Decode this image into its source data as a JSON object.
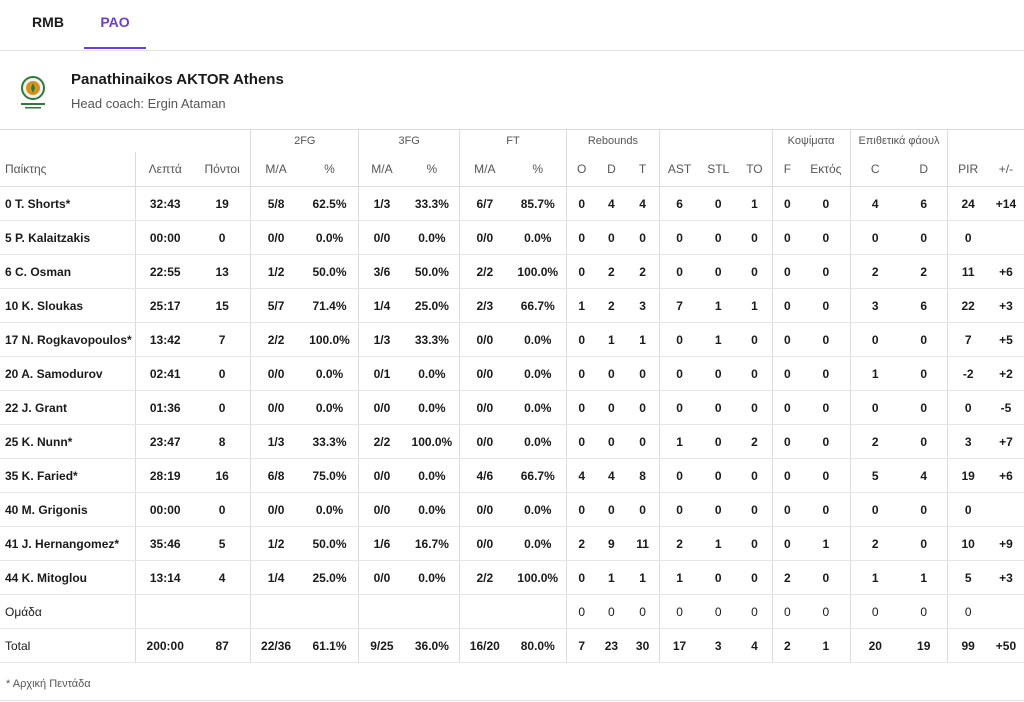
{
  "tabs": [
    {
      "label": "RMB"
    },
    {
      "label": "PAO"
    }
  ],
  "team": {
    "name": "Panathinaikos AKTOR Athens",
    "coach": "Head coach: Ergin Ataman"
  },
  "groups": {
    "fg2": "2FG",
    "fg3": "3FG",
    "ft": "FT",
    "reb": "Rebounds",
    "blk": "Κοψίματα",
    "fouls": "Επιθετικά φάουλ"
  },
  "headers": {
    "player": "Παίκτης",
    "min": "Λεπτά",
    "pts": "Πόντοι",
    "fg2_ma": "M/A",
    "fg2_pct": "%",
    "fg3_ma": "M/A",
    "fg3_pct": "%",
    "ft_ma": "M/A",
    "ft_pct": "%",
    "o": "O",
    "d": "D",
    "t": "T",
    "ast": "AST",
    "stl": "STL",
    "to": "TO",
    "blk_f": "F",
    "blk_e": "Εκτός",
    "fl_c": "C",
    "fl_d": "D",
    "pir": "PIR",
    "pm": "+/-"
  },
  "rows": [
    [
      "0 T. Shorts*",
      "32:43",
      "19",
      "5/8",
      "62.5%",
      "1/3",
      "33.3%",
      "6/7",
      "85.7%",
      "0",
      "4",
      "4",
      "6",
      "0",
      "1",
      "0",
      "0",
      "4",
      "6",
      "24",
      "+14"
    ],
    [
      "5 P. Kalaitzakis",
      "00:00",
      "0",
      "0/0",
      "0.0%",
      "0/0",
      "0.0%",
      "0/0",
      "0.0%",
      "0",
      "0",
      "0",
      "0",
      "0",
      "0",
      "0",
      "0",
      "0",
      "0",
      "0",
      ""
    ],
    [
      "6 C. Osman",
      "22:55",
      "13",
      "1/2",
      "50.0%",
      "3/6",
      "50.0%",
      "2/2",
      "100.0%",
      "0",
      "2",
      "2",
      "0",
      "0",
      "0",
      "0",
      "0",
      "2",
      "2",
      "11",
      "+6"
    ],
    [
      "10 K. Sloukas",
      "25:17",
      "15",
      "5/7",
      "71.4%",
      "1/4",
      "25.0%",
      "2/3",
      "66.7%",
      "1",
      "2",
      "3",
      "7",
      "1",
      "1",
      "0",
      "0",
      "3",
      "6",
      "22",
      "+3"
    ],
    [
      "17 N. Rogkavopoulos*",
      "13:42",
      "7",
      "2/2",
      "100.0%",
      "1/3",
      "33.3%",
      "0/0",
      "0.0%",
      "0",
      "1",
      "1",
      "0",
      "1",
      "0",
      "0",
      "0",
      "0",
      "0",
      "7",
      "+5"
    ],
    [
      "20 A. Samodurov",
      "02:41",
      "0",
      "0/0",
      "0.0%",
      "0/1",
      "0.0%",
      "0/0",
      "0.0%",
      "0",
      "0",
      "0",
      "0",
      "0",
      "0",
      "0",
      "0",
      "1",
      "0",
      "-2",
      "+2"
    ],
    [
      "22 J. Grant",
      "01:36",
      "0",
      "0/0",
      "0.0%",
      "0/0",
      "0.0%",
      "0/0",
      "0.0%",
      "0",
      "0",
      "0",
      "0",
      "0",
      "0",
      "0",
      "0",
      "0",
      "0",
      "0",
      "-5"
    ],
    [
      "25 K. Nunn*",
      "23:47",
      "8",
      "1/3",
      "33.3%",
      "2/2",
      "100.0%",
      "0/0",
      "0.0%",
      "0",
      "0",
      "0",
      "1",
      "0",
      "2",
      "0",
      "0",
      "2",
      "0",
      "3",
      "+7"
    ],
    [
      "35 K. Faried*",
      "28:19",
      "16",
      "6/8",
      "75.0%",
      "0/0",
      "0.0%",
      "4/6",
      "66.7%",
      "4",
      "4",
      "8",
      "0",
      "0",
      "0",
      "0",
      "0",
      "5",
      "4",
      "19",
      "+6"
    ],
    [
      "40 M. Grigonis",
      "00:00",
      "0",
      "0/0",
      "0.0%",
      "0/0",
      "0.0%",
      "0/0",
      "0.0%",
      "0",
      "0",
      "0",
      "0",
      "0",
      "0",
      "0",
      "0",
      "0",
      "0",
      "0",
      ""
    ],
    [
      "41 J. Hernangomez*",
      "35:46",
      "5",
      "1/2",
      "50.0%",
      "1/6",
      "16.7%",
      "0/0",
      "0.0%",
      "2",
      "9",
      "11",
      "2",
      "1",
      "0",
      "0",
      "1",
      "2",
      "0",
      "10",
      "+9"
    ],
    [
      "44 K. Mitoglou",
      "13:14",
      "4",
      "1/4",
      "25.0%",
      "0/0",
      "0.0%",
      "2/2",
      "100.0%",
      "0",
      "1",
      "1",
      "1",
      "0",
      "0",
      "2",
      "0",
      "1",
      "1",
      "5",
      "+3"
    ]
  ],
  "team_row": [
    "Ομάδα",
    "",
    "",
    "",
    "",
    "",
    "",
    "",
    "",
    "0",
    "0",
    "0",
    "0",
    "0",
    "0",
    "0",
    "0",
    "0",
    "0",
    "0",
    ""
  ],
  "total_row": [
    "Total",
    "200:00",
    "87",
    "22/36",
    "61.1%",
    "9/25",
    "36.0%",
    "16/20",
    "80.0%",
    "7",
    "23",
    "30",
    "17",
    "3",
    "4",
    "2",
    "1",
    "20",
    "19",
    "99",
    "+50"
  ],
  "footnote": "* Αρχική Πεντάδα"
}
